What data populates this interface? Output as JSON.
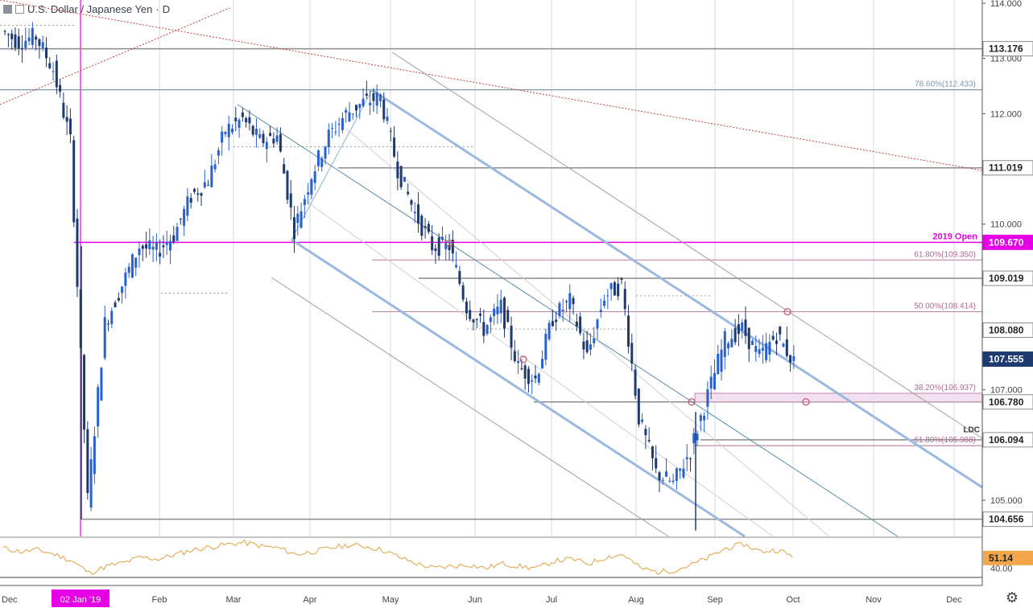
{
  "header": {
    "symbol": "U.S. Dollar / Japanese Yen",
    "separator": "·",
    "interval": "D"
  },
  "colors": {
    "up": "#2962cc",
    "down": "#1e3a6e",
    "magenta": "#e600e6",
    "fib": "#c08aa8",
    "fib_text": "#b06a90",
    "fib786": "#7a9aa6",
    "gray_level": "#8c8c8c",
    "channel": "#9bb9e0",
    "rsi": "#e0a040",
    "current_price_bg": "#1e3a6e",
    "rsi_tag_bg": "#f3a64a"
  },
  "chart_data": [
    {
      "type": "candlestick",
      "title": "U.S. Dollar / Japanese Yen · D",
      "x_ticks": [
        "Dec",
        "02 Jan '19",
        "Feb",
        "Mar",
        "Apr",
        "May",
        "Jun",
        "Jul",
        "Aug",
        "Sep",
        "Oct",
        "Nov",
        "Dec"
      ],
      "y_ticks": [
        "114.000",
        "113.000",
        "112.000",
        "110.000",
        "109.000",
        "108.000",
        "107.000",
        "105.000"
      ],
      "ylim": [
        104.35,
        114.05
      ],
      "price_tags": [
        {
          "label": "113.176",
          "value": 113.176,
          "style": "gray"
        },
        {
          "label": "111.019",
          "value": 111.019,
          "style": "gray"
        },
        {
          "label": "109.670",
          "value": 109.67,
          "style": "magenta"
        },
        {
          "label": "109.019",
          "value": 109.019,
          "style": "gray"
        },
        {
          "label": "108.080",
          "value": 108.08,
          "style": "gray"
        },
        {
          "label": "107.555",
          "value": 107.555,
          "style": "current"
        },
        {
          "label": "106.780",
          "value": 106.78,
          "style": "gray"
        },
        {
          "label": "106.094",
          "value": 106.094,
          "style": "gray"
        },
        {
          "label": "104.656",
          "value": 104.656,
          "style": "gray"
        }
      ],
      "annotations": [
        {
          "text": "78.60%(112.433)",
          "value": 112.433
        },
        {
          "text": "2019 Open",
          "value": 109.67
        },
        {
          "text": "61.80%(109.350)",
          "value": 109.35
        },
        {
          "text": "50.00%(108.414)",
          "value": 108.414
        },
        {
          "text": "38.20%(106.937)",
          "value": 106.937
        },
        {
          "text": "LDC",
          "value": 106.2
        },
        {
          "text": "61.80%(105.988)",
          "value": 105.988
        }
      ],
      "series": [
        {
          "name": "",
          "kind": "ohlc-close",
          "x": [
            "Dec 1",
            "Dec 8",
            "Dec 15",
            "Dec 22",
            "Dec 29",
            "Jan 2",
            "Jan 5",
            "Jan 12",
            "Jan 19",
            "Jan 26",
            "Feb 2",
            "Feb 9",
            "Feb 16",
            "Feb 23",
            "Mar 2",
            "Mar 9",
            "Mar 16",
            "Mar 23",
            "Mar 30",
            "Apr 6",
            "Apr 13",
            "Apr 20",
            "Apr 25",
            "May 1",
            "May 8",
            "May 15",
            "May 22",
            "May 29",
            "Jun 5",
            "Jun 12",
            "Jun 19",
            "Jun 26",
            "Jul 3",
            "Jul 10",
            "Jul 17",
            "Jul 24",
            "Jul 31",
            "Aug 7",
            "Aug 14",
            "Aug 21",
            "Aug 26",
            "Sep 2",
            "Sep 9",
            "Sep 16",
            "Sep 23",
            "Sep 30",
            "Oct 1"
          ],
          "values": [
            113.5,
            113.3,
            113.4,
            112.8,
            111.5,
            105.0,
            108.2,
            108.9,
            109.6,
            109.5,
            109.8,
            110.5,
            110.8,
            111.7,
            111.9,
            111.5,
            111.6,
            109.9,
            110.9,
            111.6,
            112.0,
            112.2,
            112.3,
            111.0,
            110.2,
            109.6,
            109.6,
            108.5,
            108.1,
            108.5,
            107.4,
            107.2,
            108.3,
            108.6,
            107.6,
            108.7,
            108.9,
            106.5,
            105.5,
            105.3,
            105.9,
            106.9,
            107.9,
            108.1,
            107.6,
            108.0,
            107.5
          ]
        },
        {
          "name": "RSI",
          "kind": "rsi",
          "y_ticks": [
            "40.00"
          ],
          "last_value_label": "51.14",
          "values": [
            62,
            58,
            60,
            55,
            48,
            35,
            42,
            46,
            52,
            50,
            55,
            60,
            63,
            66,
            68,
            64,
            62,
            55,
            58,
            62,
            65,
            64,
            60,
            52,
            45,
            40,
            42,
            44,
            40,
            45,
            42,
            40,
            48,
            50,
            45,
            52,
            55,
            40,
            36,
            38,
            44,
            52,
            62,
            66,
            58,
            60,
            51
          ]
        }
      ]
    }
  ],
  "footer": {
    "settings_icon": "gear-icon"
  }
}
